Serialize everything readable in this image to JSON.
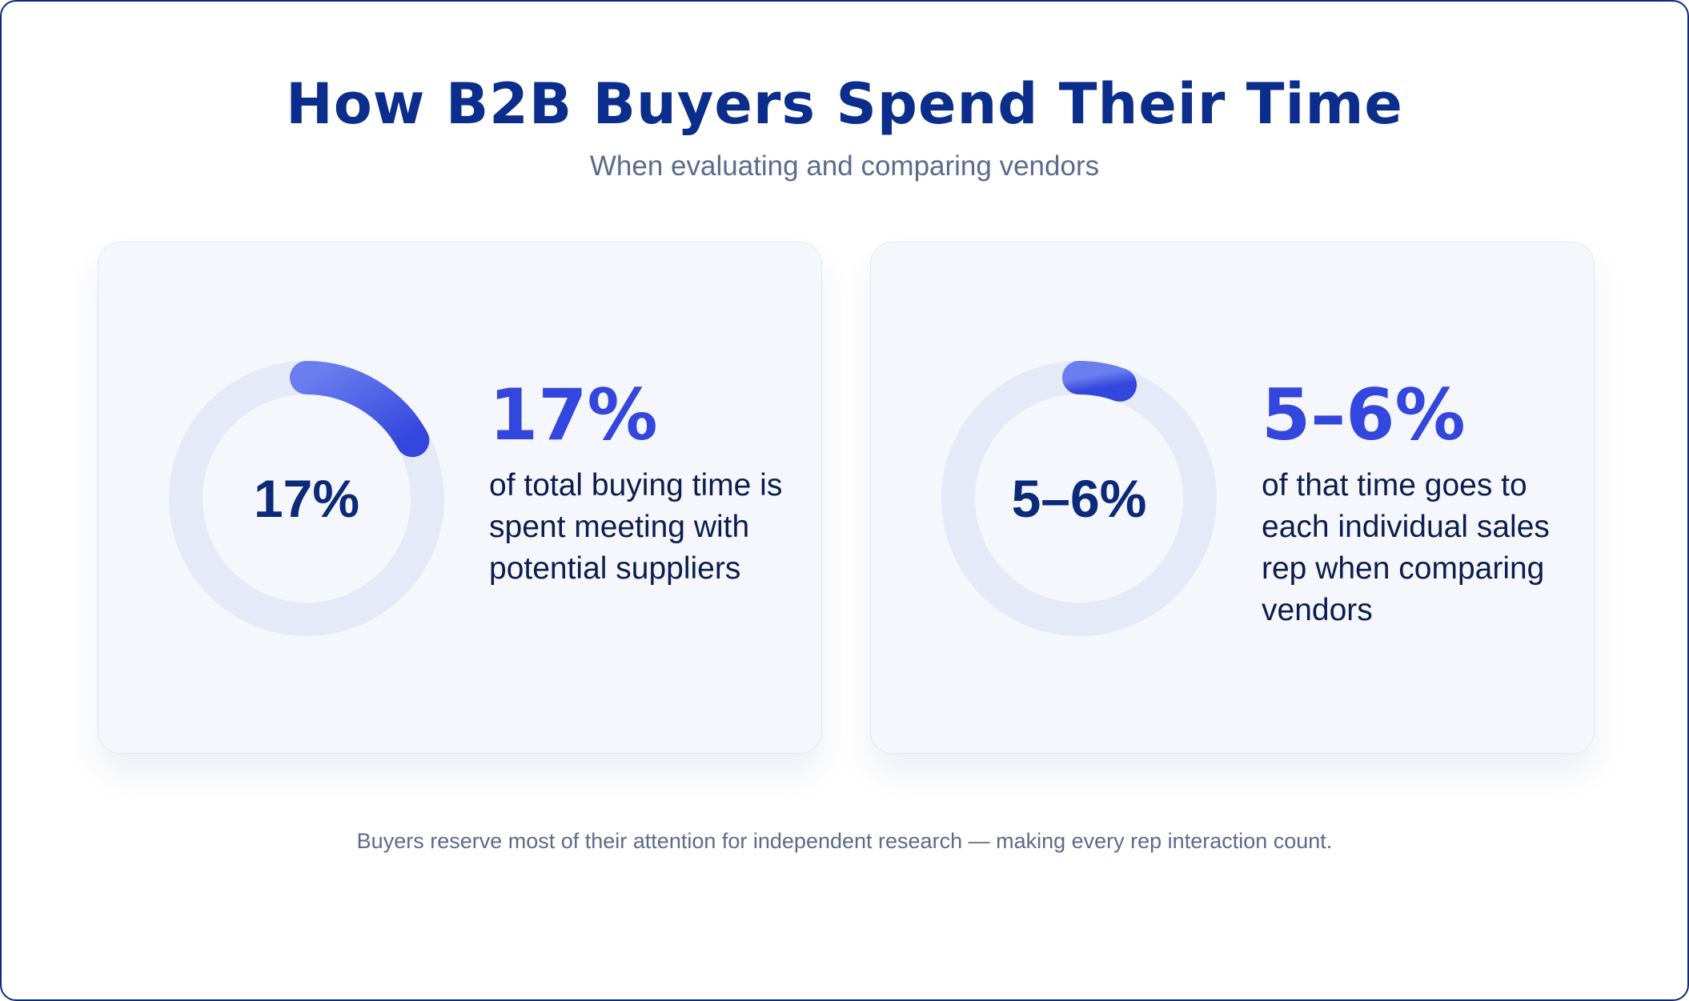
{
  "header": {
    "title": "How B2B Buyers Spend Their Time",
    "subtitle": "When evaluating and comparing vendors"
  },
  "stats": [
    {
      "ring_label": "17%",
      "value": "17%",
      "fraction": 0.17,
      "description": "of total buying time is spent meeting with potential suppliers"
    },
    {
      "ring_label": "5–6%",
      "value": "5–6%",
      "fraction": 0.055,
      "description": "of that time goes to each individual sales rep when comparing vendors"
    }
  ],
  "footnote": "Buyers reserve most of their attention for independent research — making every rep interaction count.",
  "colors": {
    "title": "#0b2d8c",
    "accent": "#3346dd",
    "accent_light": "#6b7ef0",
    "ring_track": "#e4eaf8",
    "card_bg": "#f5f7fc",
    "frame_border": "#0b2a7a"
  }
}
